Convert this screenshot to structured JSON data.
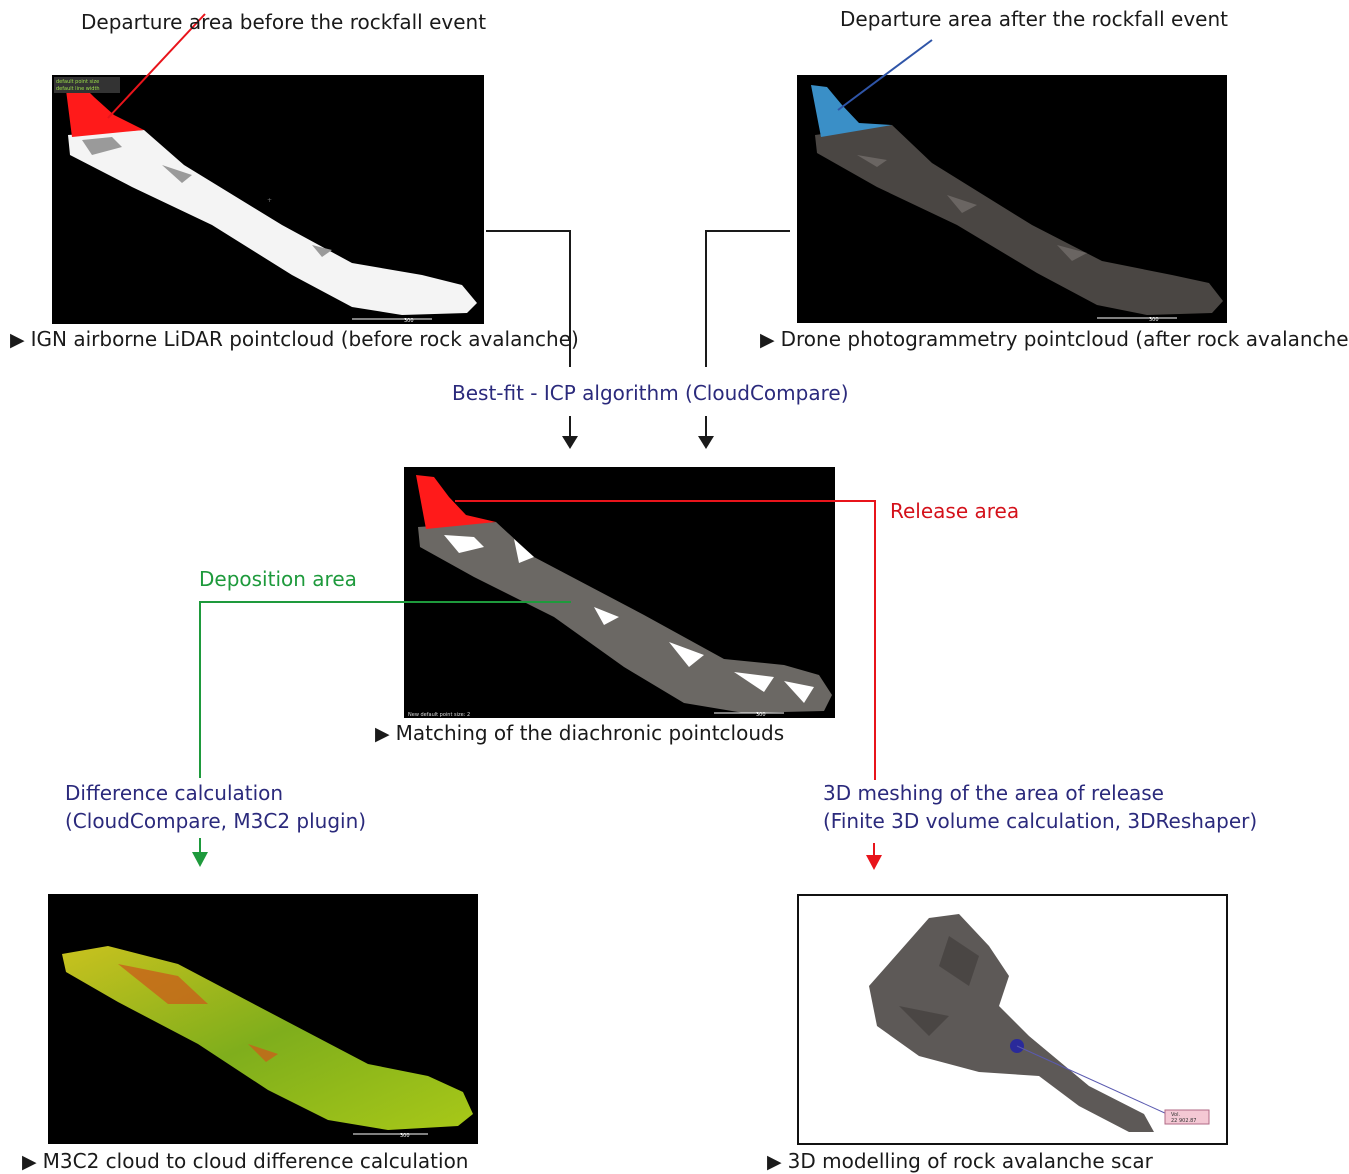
{
  "top_left": {
    "label": "Departure area before the rockfall event",
    "caption": "IGN airborne LiDAR pointcloud (before rock avalanche)",
    "hud_line1": "default point size",
    "hud_line2": "default line width",
    "scale": "300"
  },
  "top_right": {
    "label": "Departure area after the rockfall event",
    "caption": "Drone photogrammetry pointcloud (after rock avalanche)",
    "scale": "300"
  },
  "icp": {
    "label": "Best-fit - ICP algorithm (CloudCompare)"
  },
  "center": {
    "caption": "Matching of the diachronic pointclouds",
    "hud": "New default point size: 2",
    "scale": "300",
    "release_label": "Release area",
    "deposition_label": "Deposition area"
  },
  "diff": {
    "line1": "Difference calculation",
    "line2": "(CloudCompare, M3C2 plugin)"
  },
  "mesh": {
    "line1": "3D meshing of the area of release",
    "line2": "(Finite 3D volume calculation, 3DReshaper)"
  },
  "bottom_left": {
    "caption": "M3C2 cloud to cloud difference calculation",
    "scale": "300"
  },
  "bottom_right": {
    "caption": "3D modelling of rock avalanche scar",
    "tag_line1": "Vol.",
    "tag_line2": "22 902.87"
  },
  "caption_marker": "▶",
  "colors": {
    "release": "#e8141b",
    "deposition": "#1e9a3c",
    "process_text": "#2b2a7c",
    "after_highlight": "#3a8fc7",
    "connector": "#1a1a1a"
  }
}
